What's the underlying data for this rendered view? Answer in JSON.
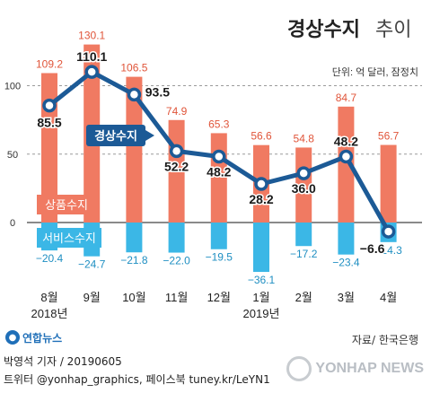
{
  "chart_data": {
    "type": "bar",
    "title": "경상수지",
    "title_suffix": "추이",
    "unit_note": "단위: 억 달러, 잠정치",
    "categories": [
      "8월",
      "9월",
      "10월",
      "11월",
      "12월",
      "1월",
      "2월",
      "3월",
      "4월"
    ],
    "year_labels": [
      {
        "category_index": 0,
        "label": "2018년"
      },
      {
        "category_index": 5,
        "label": "2019년"
      }
    ],
    "ylim": [
      -40,
      140
    ],
    "yticks": [
      0,
      50,
      100
    ],
    "series": [
      {
        "name": "상품수지",
        "type": "bar",
        "color": "#f07a62",
        "values": [
          109.2,
          130.1,
          106.5,
          74.9,
          65.3,
          56.6,
          54.8,
          84.7,
          56.7
        ]
      },
      {
        "name": "서비스수지",
        "type": "bar",
        "color": "#3bb7e6",
        "values": [
          -20.4,
          -24.7,
          -21.8,
          -22.0,
          -19.5,
          -36.1,
          -17.2,
          -23.4,
          -14.3
        ]
      },
      {
        "name": "경상수지",
        "type": "line",
        "color": "#1c5a96",
        "values": [
          85.5,
          110.1,
          93.5,
          52.2,
          48.2,
          28.2,
          36.0,
          48.2,
          -6.6
        ]
      }
    ]
  },
  "footer": {
    "logo_text": "연합뉴스",
    "source": "자료/ 한국은행",
    "credit_line1": "박영석 기자 / 20190605",
    "credit_line2": "트위터 @yonhap_graphics, 페이스북 tuney.kr/LeYN1",
    "watermark": "YONHAP NEWS"
  }
}
